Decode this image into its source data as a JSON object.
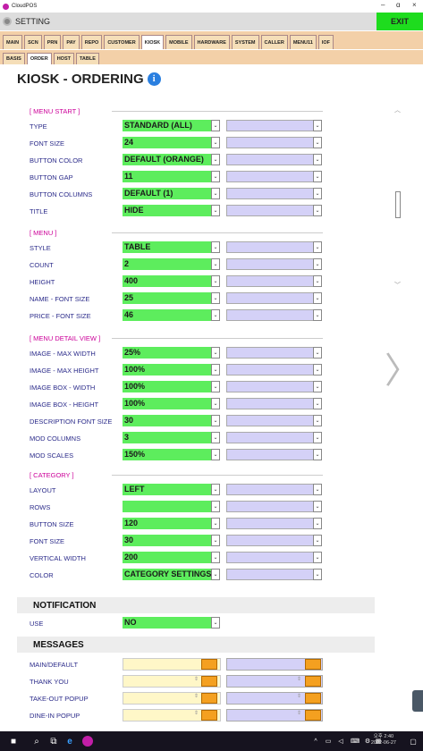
{
  "window": {
    "title": "CloudPOS",
    "minimize": "–",
    "maximize": "ɑ",
    "close": "×"
  },
  "header": {
    "title": "SETTING",
    "exit_label": "EXIT"
  },
  "main_tabs": [
    "MAIN",
    "SCN",
    "PRN",
    "PAY",
    "REPO",
    "CUSTOMER",
    "KIOSK",
    "MOBILE",
    "HARDWARE",
    "SYSTEM",
    "CALLER",
    "MENU11",
    "IOF"
  ],
  "main_tab_active": "KIOSK",
  "sub_tabs": [
    "BASIS",
    "ORDER",
    "HOST",
    "TABLE"
  ],
  "sub_tab_active": "ORDER",
  "page_title": "KIOSK - ORDERING",
  "info_glyph": "i",
  "groups": {
    "menu_start": "[ MENU START ]",
    "menu": "[ MENU ]",
    "menu_detail": "[ MENU DETAIL VIEW ]",
    "category": "[ CATEGORY ]"
  },
  "menu_start": [
    {
      "label": "TYPE",
      "value": "STANDARD (ALL)"
    },
    {
      "label": "FONT SIZE",
      "value": "24"
    },
    {
      "label": "BUTTON COLOR",
      "value": "DEFAULT (ORANGE)"
    },
    {
      "label": "BUTTON GAP",
      "value": "11"
    },
    {
      "label": "BUTTON COLUMNS",
      "value": "DEFAULT (1)"
    },
    {
      "label": "TITLE",
      "value": "HIDE"
    }
  ],
  "menu": [
    {
      "label": "STYLE",
      "value": "TABLE"
    },
    {
      "label": "COUNT",
      "value": "2"
    },
    {
      "label": "HEIGHT",
      "value": "400"
    },
    {
      "label": "NAME - FONT SIZE",
      "value": "25"
    },
    {
      "label": "PRICE - FONT SIZE",
      "value": "46"
    }
  ],
  "menu_detail": [
    {
      "label": "IMAGE - MAX WIDTH",
      "value": "25%"
    },
    {
      "label": "IMAGE - MAX HEIGHT",
      "value": "100%"
    },
    {
      "label": "IMAGE BOX - WIDTH",
      "value": "100%"
    },
    {
      "label": "IMAGE BOX - HEIGHT",
      "value": "100%"
    },
    {
      "label": "DESCRIPTION FONT SIZE",
      "value": "30"
    },
    {
      "label": "MOD COLUMNS",
      "value": "3"
    },
    {
      "label": "MOD SCALES",
      "value": "150%"
    }
  ],
  "category": [
    {
      "label": "LAYOUT",
      "value": "LEFT"
    },
    {
      "label": "ROWS",
      "value": ""
    },
    {
      "label": "BUTTON SIZE",
      "value": "120"
    },
    {
      "label": "FONT SIZE",
      "value": "30"
    },
    {
      "label": "VERTICAL WIDTH",
      "value": "200"
    },
    {
      "label": "COLOR",
      "value": "CATEGORY SETTINGS"
    }
  ],
  "notification": {
    "title": "NOTIFICATION",
    "label": "USE",
    "value": "NO"
  },
  "messages": {
    "title": "MESSAGES",
    "rows": [
      "MAIN/DEFAULT",
      "THANK YOU",
      "TAKE-OUT POPUP",
      "DINE-IN POPUP"
    ]
  },
  "taskbar": {
    "time": "오후 2:40",
    "date": "2022-06-27"
  },
  "colors": {
    "select_green": "#5ded5d",
    "select_lavender": "#d4d1f7",
    "exit_green": "#1edc1e",
    "tabs_bg": "#f3d0a8",
    "group_magenta": "#cc0099"
  }
}
